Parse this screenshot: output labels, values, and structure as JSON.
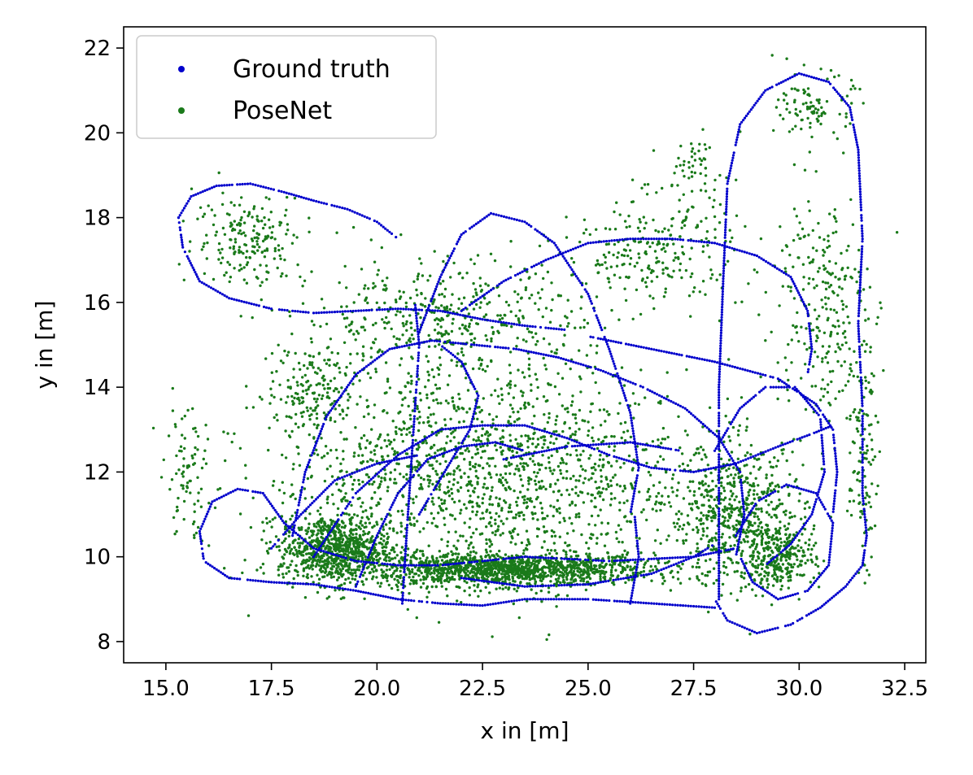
{
  "chart_data": {
    "type": "scatter",
    "xlabel": "x in [m]",
    "ylabel": "y in [m]",
    "xlim": [
      14.0,
      33.0
    ],
    "ylim": [
      7.5,
      22.5
    ],
    "xticks": [
      15.0,
      17.5,
      20.0,
      22.5,
      25.0,
      27.5,
      30.0,
      32.5
    ],
    "xtick_labels": [
      "15.0",
      "17.5",
      "20.0",
      "22.5",
      "25.0",
      "27.5",
      "30.0",
      "32.5"
    ],
    "yticks": [
      8,
      10,
      12,
      14,
      16,
      18,
      20,
      22
    ],
    "ytick_labels": [
      "8",
      "10",
      "12",
      "14",
      "16",
      "18",
      "20",
      "22"
    ],
    "grid": false,
    "legend_position": "top-left",
    "series": [
      {
        "name": "Ground truth",
        "color": "#0000cc",
        "marker": "small-dot",
        "paths": [
          [
            [
              15.3,
              18.0
            ],
            [
              15.6,
              18.5
            ],
            [
              16.2,
              18.75
            ],
            [
              17.0,
              18.8
            ],
            [
              17.8,
              18.6
            ],
            [
              18.5,
              18.4
            ],
            [
              19.3,
              18.2
            ],
            [
              20.0,
              17.9
            ],
            [
              20.5,
              17.5
            ]
          ],
          [
            [
              15.3,
              18.0
            ],
            [
              15.4,
              17.3
            ],
            [
              15.8,
              16.5
            ],
            [
              16.5,
              16.1
            ],
            [
              17.5,
              15.85
            ],
            [
              18.5,
              15.75
            ],
            [
              19.5,
              15.8
            ],
            [
              20.5,
              15.85
            ],
            [
              21.5,
              15.8
            ],
            [
              22.5,
              15.6
            ],
            [
              23.5,
              15.45
            ],
            [
              24.5,
              15.35
            ]
          ],
          [
            [
              22.0,
              15.8
            ],
            [
              23.0,
              16.5
            ],
            [
              24.0,
              17.0
            ],
            [
              25.0,
              17.4
            ],
            [
              26.0,
              17.5
            ],
            [
              27.0,
              17.5
            ],
            [
              28.0,
              17.4
            ],
            [
              29.0,
              17.1
            ],
            [
              29.8,
              16.6
            ],
            [
              30.2,
              15.8
            ],
            [
              30.3,
              14.9
            ],
            [
              30.2,
              14.3
            ]
          ],
          [
            [
              21.0,
              15.3
            ],
            [
              21.5,
              16.6
            ],
            [
              22.0,
              17.6
            ],
            [
              22.7,
              18.1
            ],
            [
              23.5,
              17.9
            ],
            [
              24.2,
              17.4
            ],
            [
              25.0,
              16.2
            ],
            [
              25.5,
              14.9
            ],
            [
              26.0,
              13.4
            ],
            [
              26.2,
              12.1
            ],
            [
              26.0,
              11.0
            ]
          ],
          [
            [
              28.1,
              9.0
            ],
            [
              28.1,
              11.5
            ],
            [
              28.1,
              14.0
            ],
            [
              28.2,
              16.5
            ],
            [
              28.3,
              18.8
            ],
            [
              28.6,
              20.2
            ],
            [
              29.2,
              21.0
            ],
            [
              30.0,
              21.4
            ],
            [
              30.7,
              21.2
            ],
            [
              31.2,
              20.6
            ],
            [
              31.4,
              19.6
            ],
            [
              31.5,
              17.5
            ],
            [
              31.4,
              15.5
            ],
            [
              31.5,
              13.5
            ],
            [
              31.5,
              11.5
            ],
            [
              31.6,
              10.5
            ]
          ],
          [
            [
              31.6,
              10.5
            ],
            [
              31.5,
              9.8
            ],
            [
              31.1,
              9.3
            ],
            [
              30.5,
              8.8
            ],
            [
              29.8,
              8.4
            ],
            [
              29.0,
              8.2
            ],
            [
              28.3,
              8.5
            ],
            [
              28.0,
              9.0
            ]
          ],
          [
            [
              28.0,
              8.8
            ],
            [
              26.5,
              8.9
            ],
            [
              25.0,
              9.0
            ],
            [
              23.5,
              9.0
            ],
            [
              22.5,
              8.85
            ],
            [
              21.5,
              8.9
            ],
            [
              20.5,
              9.0
            ],
            [
              19.5,
              9.2
            ],
            [
              18.5,
              9.35
            ],
            [
              17.5,
              9.4
            ],
            [
              16.5,
              9.5
            ],
            [
              15.9,
              9.9
            ],
            [
              15.8,
              10.6
            ],
            [
              16.1,
              11.3
            ],
            [
              16.7,
              11.6
            ],
            [
              17.3,
              11.5
            ],
            [
              17.8,
              10.8
            ],
            [
              18.5,
              10.2
            ],
            [
              19.5,
              9.9
            ],
            [
              20.5,
              9.8
            ],
            [
              21.5,
              9.8
            ],
            [
              22.5,
              9.9
            ],
            [
              23.5,
              10.0
            ],
            [
              24.5,
              9.95
            ],
            [
              25.5,
              9.9
            ],
            [
              26.5,
              9.95
            ],
            [
              27.5,
              10.0
            ],
            [
              28.5,
              10.2
            ]
          ],
          [
            [
              18.0,
              10.5
            ],
            [
              18.3,
              12.0
            ],
            [
              18.8,
              13.3
            ],
            [
              19.5,
              14.3
            ],
            [
              20.3,
              14.9
            ],
            [
              21.3,
              15.1
            ],
            [
              22.3,
              15.0
            ],
            [
              23.3,
              14.9
            ],
            [
              24.3,
              14.7
            ],
            [
              25.3,
              14.4
            ],
            [
              26.3,
              14.0
            ],
            [
              27.3,
              13.5
            ],
            [
              28.1,
              12.8
            ],
            [
              28.6,
              12.0
            ],
            [
              28.7,
              11.0
            ],
            [
              28.5,
              10.0
            ]
          ],
          [
            [
              18.5,
              10.0
            ],
            [
              19.5,
              11.5
            ],
            [
              20.5,
              12.4
            ],
            [
              21.5,
              13.0
            ],
            [
              22.5,
              13.1
            ],
            [
              23.5,
              13.1
            ],
            [
              24.5,
              12.8
            ],
            [
              25.5,
              12.4
            ],
            [
              26.5,
              12.1
            ],
            [
              27.5,
              12.0
            ],
            [
              28.5,
              12.2
            ],
            [
              29.5,
              12.6
            ],
            [
              30.3,
              12.9
            ],
            [
              30.8,
              13.1
            ]
          ],
          [
            [
              25.0,
              15.2
            ],
            [
              26.5,
              14.9
            ],
            [
              28.0,
              14.6
            ],
            [
              29.5,
              14.2
            ],
            [
              30.4,
              13.6
            ],
            [
              30.8,
              13.0
            ],
            [
              30.9,
              12.0
            ],
            [
              30.8,
              11.0
            ]
          ],
          [
            [
              28.0,
              12.5
            ],
            [
              28.6,
              13.5
            ],
            [
              29.2,
              14.0
            ],
            [
              29.9,
              14.0
            ],
            [
              30.5,
              13.3
            ],
            [
              30.6,
              12.0
            ],
            [
              30.3,
              11.0
            ],
            [
              29.8,
              10.3
            ],
            [
              29.2,
              9.8
            ]
          ],
          [
            [
              28.5,
              10.5
            ],
            [
              29.0,
              11.3
            ],
            [
              29.7,
              11.7
            ],
            [
              30.4,
              11.5
            ],
            [
              30.8,
              10.8
            ],
            [
              30.7,
              9.8
            ],
            [
              30.2,
              9.2
            ],
            [
              29.5,
              9.0
            ],
            [
              28.9,
              9.4
            ],
            [
              28.6,
              10.0
            ]
          ],
          [
            [
              20.6,
              8.9
            ],
            [
              20.7,
              10.5
            ],
            [
              20.8,
              12.0
            ],
            [
              20.9,
              13.5
            ],
            [
              21.0,
              15.0
            ],
            [
              20.9,
              16.0
            ]
          ],
          [
            [
              19.5,
              9.3
            ],
            [
              20.0,
              10.5
            ],
            [
              20.5,
              11.5
            ],
            [
              21.2,
              12.3
            ],
            [
              22.0,
              12.6
            ],
            [
              22.8,
              12.7
            ],
            [
              23.5,
              12.5
            ]
          ],
          [
            [
              17.5,
              10.2
            ],
            [
              18.2,
              11.0
            ],
            [
              19.0,
              11.8
            ],
            [
              20.0,
              12.2
            ],
            [
              21.0,
              12.4
            ]
          ],
          [
            [
              21.0,
              11.0
            ],
            [
              21.6,
              12.0
            ],
            [
              22.2,
              13.0
            ],
            [
              22.4,
              13.8
            ],
            [
              22.0,
              14.6
            ],
            [
              21.5,
              15.0
            ]
          ],
          [
            [
              22.0,
              9.5
            ],
            [
              23.5,
              9.3
            ],
            [
              25.0,
              9.35
            ],
            [
              26.5,
              9.6
            ],
            [
              27.5,
              10.0
            ],
            [
              28.0,
              10.3
            ]
          ],
          [
            [
              26.0,
              8.9
            ],
            [
              26.2,
              10.0
            ],
            [
              26.1,
              11.0
            ]
          ],
          [
            [
              23.0,
              12.3
            ],
            [
              24.5,
              12.6
            ],
            [
              26.0,
              12.7
            ],
            [
              27.2,
              12.5
            ]
          ]
        ]
      },
      {
        "name": "PoseNet",
        "color": "#1a7a1a",
        "marker": "small-dot",
        "clusters": [
          {
            "center": [
              23.0,
              9.7
            ],
            "spread": [
              3.2,
              0.35
            ],
            "count": 1400
          },
          {
            "center": [
              19.0,
              10.2
            ],
            "spread": [
              1.2,
              0.7
            ],
            "count": 800
          },
          {
            "center": [
              22.5,
              12.0
            ],
            "spread": [
              4.5,
              2.3
            ],
            "count": 1600
          },
          {
            "center": [
              21.5,
              15.6
            ],
            "spread": [
              3.0,
              1.3
            ],
            "count": 450
          },
          {
            "center": [
              17.0,
              17.5
            ],
            "spread": [
              1.2,
              1.0
            ],
            "count": 200
          },
          {
            "center": [
              28.5,
              11.0
            ],
            "spread": [
              1.5,
              1.5
            ],
            "count": 600
          },
          {
            "center": [
              29.5,
              10.0
            ],
            "spread": [
              0.8,
              0.7
            ],
            "count": 300
          },
          {
            "center": [
              30.5,
              16.0
            ],
            "spread": [
              1.0,
              2.5
            ],
            "count": 250
          },
          {
            "center": [
              30.4,
              20.6
            ],
            "spread": [
              0.8,
              0.7
            ],
            "count": 100
          },
          {
            "center": [
              26.5,
              17.2
            ],
            "spread": [
              2.0,
              1.2
            ],
            "count": 250
          },
          {
            "center": [
              27.5,
              19.0
            ],
            "spread": [
              0.7,
              1.0
            ],
            "count": 60
          },
          {
            "center": [
              15.5,
              12.0
            ],
            "spread": [
              0.6,
              1.4
            ],
            "count": 80
          },
          {
            "center": [
              31.5,
              12.5
            ],
            "spread": [
              0.3,
              2.5
            ],
            "count": 120
          },
          {
            "center": [
              18.5,
              14.0
            ],
            "spread": [
              0.8,
              1.0
            ],
            "count": 150
          }
        ]
      }
    ]
  }
}
